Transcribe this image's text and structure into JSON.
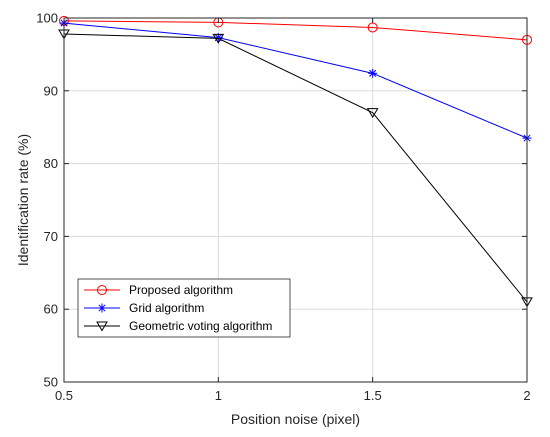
{
  "chart_data": {
    "type": "line",
    "title": "",
    "xlabel": "Position noise (pixel)",
    "ylabel": "Identification rate (%)",
    "x": [
      0.5,
      1,
      1.5,
      2
    ],
    "xlim": [
      0.5,
      2
    ],
    "ylim": [
      50,
      100
    ],
    "xticks": [
      "0.5",
      "1",
      "1.5",
      "2"
    ],
    "yticks": [
      "50",
      "60",
      "70",
      "80",
      "90",
      "100"
    ],
    "grid": true,
    "legend_position": "bottom-left",
    "series": [
      {
        "name": "Proposed algorithm",
        "values": [
          99.6,
          99.4,
          98.7,
          97.0
        ],
        "color": "#ff0000",
        "marker": "circle"
      },
      {
        "name": "Grid algorithm",
        "values": [
          99.3,
          97.3,
          92.4,
          83.5
        ],
        "color": "#0000ff",
        "marker": "asterisk"
      },
      {
        "name": "Geometric voting algorithm",
        "values": [
          97.8,
          97.2,
          87.0,
          61.0
        ],
        "color": "#000000",
        "marker": "triangle-down"
      }
    ]
  }
}
